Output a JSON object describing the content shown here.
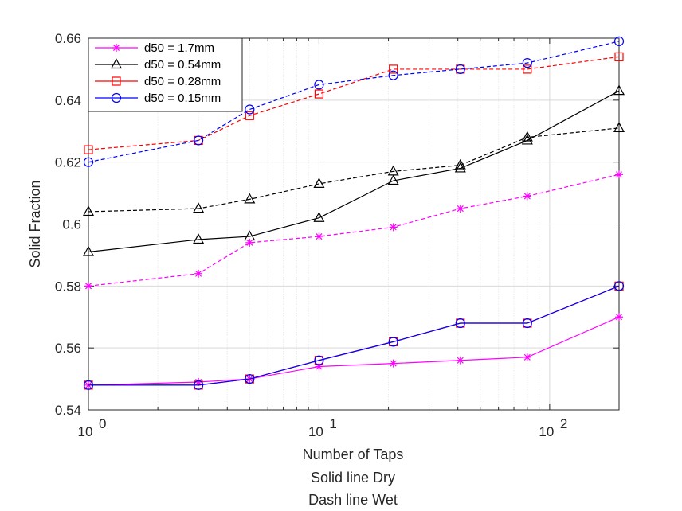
{
  "chart_data": {
    "type": "line",
    "xlabel": "Number of Taps",
    "xlabel_lines": [
      "Number of Taps",
      "Solid line Dry",
      "Dash line Wet"
    ],
    "ylabel": "Solid Fraction",
    "xscale": "log",
    "xlim": [
      1,
      200
    ],
    "ylim": [
      0.54,
      0.66
    ],
    "yticks": [
      0.54,
      0.56,
      0.58,
      0.6,
      0.62,
      0.64,
      0.66
    ],
    "ytick_labels": [
      "0.54",
      "0.56",
      "0.58",
      "0.6",
      "0.62",
      "0.64",
      "0.66"
    ],
    "xticks": [
      {
        "value": 1,
        "base": "10",
        "exp": "0"
      },
      {
        "value": 10,
        "base": "10",
        "exp": "1"
      },
      {
        "value": 100,
        "base": "10",
        "exp": "2"
      }
    ],
    "grid": true,
    "legend_position": "top-left",
    "x": [
      1,
      3,
      5,
      10,
      21,
      41,
      80,
      200
    ],
    "series": [
      {
        "name": "d50 = 1.7mm",
        "color": "#ff00ff",
        "marker": "asterisk",
        "style": "solid",
        "values": [
          0.548,
          0.549,
          0.55,
          0.554,
          0.555,
          0.556,
          0.557,
          0.57
        ]
      },
      {
        "name": "d50 = 0.54mm",
        "color": "#000000",
        "marker": "triangle",
        "style": "solid",
        "values": [
          0.591,
          0.595,
          0.596,
          0.602,
          0.614,
          0.618,
          0.627,
          0.643
        ]
      },
      {
        "name": "d50 = 0.28mm",
        "color": "#ff0000",
        "marker": "square",
        "style": "dashed",
        "values": [
          0.624,
          0.627,
          0.635,
          0.642,
          0.65,
          0.65,
          0.65,
          0.654
        ]
      },
      {
        "name": "d50 = 0.15mm",
        "color": "#0000ff",
        "marker": "circle",
        "style": "dashed",
        "values": [
          0.62,
          0.627,
          0.637,
          0.645,
          0.648,
          0.65,
          0.652,
          0.659
        ]
      },
      {
        "name": "",
        "color": "#ff00ff",
        "marker": "asterisk",
        "style": "dashed",
        "values": [
          0.58,
          0.584,
          0.594,
          0.596,
          0.599,
          0.605,
          0.609,
          0.616
        ]
      },
      {
        "name": "",
        "color": "#000000",
        "marker": "triangle",
        "style": "dashed",
        "values": [
          0.604,
          0.605,
          0.608,
          0.613,
          0.617,
          0.619,
          0.628,
          0.631
        ]
      },
      {
        "name": "",
        "color": "#ff0000",
        "marker": "square",
        "style": "solid",
        "values": [
          0.548,
          0.548,
          0.55,
          0.556,
          0.562,
          0.568,
          0.568,
          0.58
        ]
      },
      {
        "name": "",
        "color": "#0000ff",
        "marker": "circle",
        "style": "solid",
        "values": [
          0.548,
          0.548,
          0.55,
          0.556,
          0.562,
          0.568,
          0.568,
          0.58
        ]
      }
    ]
  }
}
